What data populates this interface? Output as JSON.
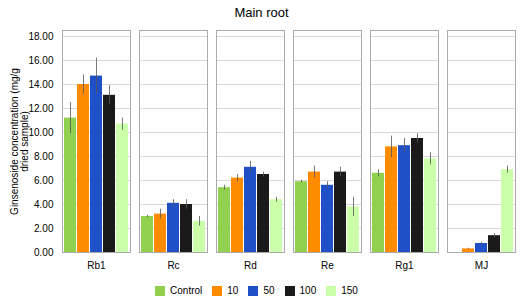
{
  "chart_data": {
    "type": "bar",
    "title": "Main root",
    "ylabel": "Ginsenoside concentration (mg/g\ndried sample)",
    "categories": [
      "Rb1",
      "Rc",
      "Rd",
      "Re",
      "Rg1",
      "MJ"
    ],
    "series": [
      {
        "name": "Control",
        "color": "#92d050",
        "values": [
          11.2,
          3.0,
          5.4,
          5.9,
          6.6,
          0.0
        ],
        "errors": [
          1.3,
          0.1,
          0.2,
          0.1,
          0.3,
          0.0
        ]
      },
      {
        "name": "10",
        "color": "#ff8c00",
        "values": [
          14.0,
          3.2,
          6.2,
          6.7,
          8.8,
          0.3
        ],
        "errors": [
          0.8,
          0.4,
          0.3,
          0.5,
          0.9,
          0.05
        ]
      },
      {
        "name": "50",
        "color": "#2050c8",
        "values": [
          14.7,
          4.1,
          7.1,
          5.6,
          8.9,
          0.75
        ],
        "errors": [
          1.5,
          0.3,
          0.5,
          0.3,
          0.6,
          0.1
        ]
      },
      {
        "name": "100",
        "color": "#1a1a1a",
        "values": [
          13.1,
          4.0,
          6.5,
          6.7,
          9.5,
          1.4
        ],
        "errors": [
          0.8,
          0.4,
          0.2,
          0.4,
          0.4,
          0.2
        ]
      },
      {
        "name": "150",
        "color": "#ccffaa",
        "values": [
          10.7,
          2.6,
          4.4,
          3.8,
          7.8,
          6.9
        ],
        "errors": [
          0.5,
          0.4,
          0.2,
          0.8,
          0.5,
          0.3
        ]
      }
    ],
    "ylim": [
      0,
      18.5
    ],
    "yticks": [
      {
        "value": 0,
        "label": "0.00"
      },
      {
        "value": 2,
        "label": "2.00"
      },
      {
        "value": 4,
        "label": "4.00"
      },
      {
        "value": 6,
        "label": "6.00"
      },
      {
        "value": 8,
        "label": "8.00"
      },
      {
        "value": 10,
        "label": "10.00"
      },
      {
        "value": 12,
        "label": "12.00"
      },
      {
        "value": 14,
        "label": "14.00"
      },
      {
        "value": 16,
        "label": "16.00"
      },
      {
        "value": 18,
        "label": "18.00"
      }
    ],
    "grid": true,
    "legend": "bottom"
  }
}
